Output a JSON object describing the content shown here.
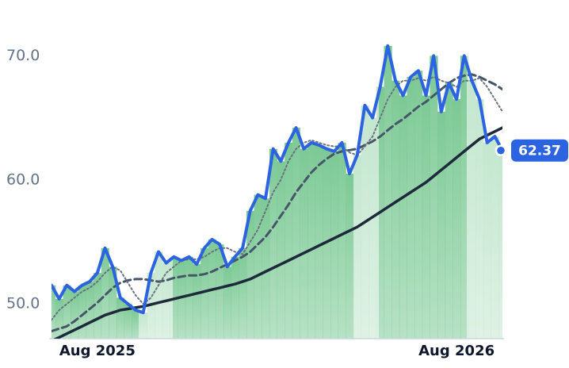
{
  "chart_data": {
    "type": "line",
    "categories": [
      null,
      null,
      null,
      null,
      null,
      null,
      "Aug 2025",
      null,
      null,
      null,
      null,
      null,
      null,
      null,
      null,
      null,
      null,
      null,
      null,
      null,
      null,
      null,
      null,
      null,
      null,
      null,
      null,
      null,
      null,
      null,
      null,
      null,
      null,
      null,
      null,
      null,
      null,
      null,
      null,
      null,
      null,
      null,
      null,
      null,
      null,
      null,
      null,
      null,
      null,
      null,
      null,
      null,
      null,
      "Aug 2026",
      null,
      null,
      null,
      null,
      null,
      null
    ],
    "series": [
      {
        "color": "#2b63e0",
        "style": "solid",
        "width": 4,
        "area": true,
        "last_label": true,
        "values": [
          51.5,
          50.4,
          51.5,
          51,
          51.5,
          51.8,
          52.5,
          54.5,
          53,
          50.5,
          50,
          49.5,
          49.3,
          52.5,
          54.2,
          53.3,
          53.8,
          53.5,
          53.8,
          53.2,
          54.5,
          55.2,
          54.8,
          53,
          53.8,
          54.5,
          57.5,
          58.8,
          58.5,
          62.5,
          61.5,
          63,
          64.2,
          62.5,
          63,
          62.8,
          62.5,
          62.3,
          63,
          60.5,
          62,
          66,
          65,
          67.5,
          70.8,
          68,
          66.8,
          68.3,
          68.8,
          66.8,
          70,
          65.5,
          67.8,
          66.5,
          70,
          68,
          66.5,
          63,
          63.5,
          62.37
        ]
      },
      {
        "color": "#6b7280",
        "style": "dotted",
        "width": 2,
        "values": [
          48.7,
          49.5,
          50,
          50.5,
          51,
          51.3,
          51.8,
          52.5,
          53,
          52.7,
          51.7,
          50.7,
          50,
          50.5,
          51.5,
          52.5,
          53,
          53.5,
          53.6,
          53.6,
          53.8,
          54.2,
          54.5,
          54.5,
          54.2,
          54,
          55,
          56,
          57.5,
          59,
          60,
          61.5,
          62.5,
          63,
          63.2,
          63,
          62.8,
          62.7,
          62.7,
          62.2,
          62,
          62.7,
          63.5,
          65,
          66.5,
          67.5,
          68,
          68,
          68.2,
          68,
          68.3,
          68,
          67.8,
          67.5,
          68,
          68,
          68.2,
          67.5,
          66.5,
          65.5
        ]
      },
      {
        "color": "#475569",
        "style": "dashed",
        "width": 3,
        "values": [
          47.8,
          48,
          48.2,
          48.6,
          49.1,
          49.6,
          50.1,
          50.7,
          51.3,
          51.7,
          51.9,
          52,
          52,
          51.9,
          51.8,
          51.9,
          52.1,
          52.2,
          52.3,
          52.3,
          52.4,
          52.6,
          52.9,
          53.2,
          53.5,
          53.8,
          54.2,
          54.8,
          55.4,
          56.2,
          57.1,
          58,
          59,
          59.8,
          60.6,
          61.2,
          61.7,
          62.1,
          62.3,
          62.4,
          62.5,
          62.8,
          63.1,
          63.5,
          64,
          64.5,
          64.9,
          65.4,
          65.9,
          66.3,
          66.8,
          67.3,
          67.8,
          68.2,
          68.4,
          68.5,
          68.3,
          68,
          67.7,
          67.3
        ]
      },
      {
        "color": "#1e293b",
        "style": "solid",
        "width": 3.5,
        "values": [
          47.0,
          47.3,
          47.6,
          47.9,
          48.2,
          48.5,
          48.8,
          49.1,
          49.3,
          49.5,
          49.6,
          49.7,
          49.8,
          49.95,
          50.1,
          50.25,
          50.4,
          50.55,
          50.7,
          50.85,
          51,
          51.15,
          51.3,
          51.45,
          51.6,
          51.8,
          52.0,
          52.3,
          52.6,
          52.9,
          53.2,
          53.5,
          53.8,
          54.1,
          54.4,
          54.7,
          55,
          55.3,
          55.6,
          55.9,
          56.2,
          56.6,
          57,
          57.4,
          57.8,
          58.2,
          58.6,
          59,
          59.4,
          59.8,
          60.3,
          60.8,
          61.3,
          61.8,
          62.3,
          62.8,
          63.3,
          63.6,
          63.9,
          64.2
        ]
      }
    ],
    "area_color": "#7cc995",
    "ylim": [
      47.2,
      74.5
    ],
    "yticks": [
      {
        "value": 50,
        "label": "50.0"
      },
      {
        "value": 60,
        "label": "60.0"
      },
      {
        "value": 70,
        "label": "70.0"
      }
    ],
    "grid": false
  }
}
